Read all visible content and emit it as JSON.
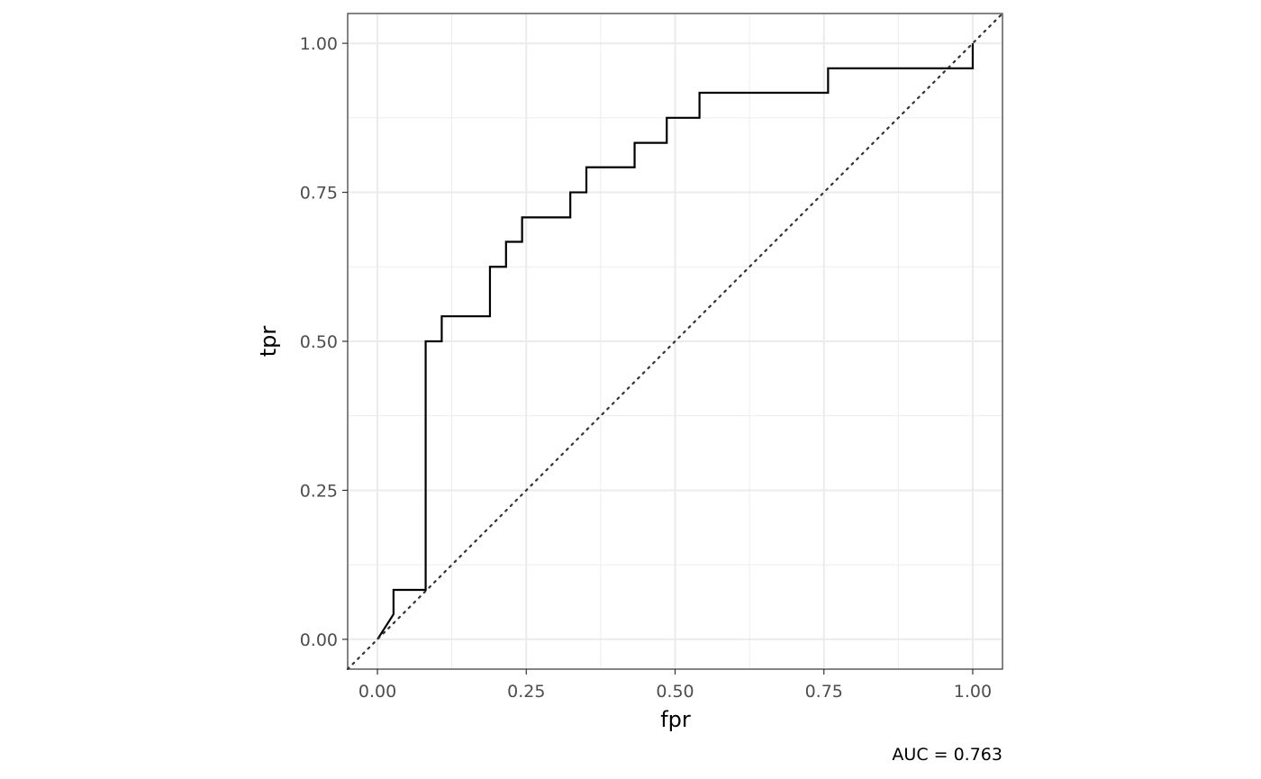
{
  "chart_data": {
    "type": "line",
    "title": "",
    "xlabel": "fpr",
    "ylabel": "tpr",
    "caption": "AUC = 0.763",
    "xlim": [
      -0.05,
      1.05
    ],
    "ylim": [
      -0.05,
      1.05
    ],
    "x_ticks": [
      0,
      0.25,
      0.5,
      0.75,
      1
    ],
    "x_tick_labels": [
      "0.00",
      "0.25",
      "0.50",
      "0.75",
      "1.00"
    ],
    "y_ticks": [
      0,
      0.25,
      0.5,
      0.75,
      1
    ],
    "y_tick_labels": [
      "0.00",
      "0.25",
      "0.50",
      "0.75",
      "1.00"
    ],
    "minor_ticks": [
      0.125,
      0.375,
      0.625,
      0.875
    ],
    "grid": true,
    "legend": "none",
    "series": [
      {
        "kind": "roc-step",
        "color": "#000000",
        "x": [
          0,
          0.027,
          0.027,
          0.081,
          0.081,
          0.108,
          0.108,
          0.189,
          0.189,
          0.216,
          0.216,
          0.243,
          0.243,
          0.324,
          0.324,
          0.351,
          0.351,
          0.432,
          0.432,
          0.486,
          0.486,
          0.541,
          0.541,
          0.757,
          0.757,
          1,
          1
        ],
        "y": [
          0,
          0.042,
          0.083,
          0.083,
          0.5,
          0.5,
          0.542,
          0.542,
          0.625,
          0.625,
          0.667,
          0.667,
          0.708,
          0.708,
          0.75,
          0.75,
          0.792,
          0.792,
          0.833,
          0.833,
          0.875,
          0.875,
          0.917,
          0.917,
          0.958,
          0.958,
          1
        ]
      },
      {
        "kind": "reference-diagonal",
        "style": "dotted",
        "color": "#333333",
        "x": [
          -0.05,
          1.05
        ],
        "y": [
          -0.05,
          1.05
        ]
      }
    ],
    "colors": {
      "panel_border": "#333333",
      "grid": "#ebebeb",
      "tick_text": "#4d4d4d",
      "line": "#000000"
    }
  }
}
